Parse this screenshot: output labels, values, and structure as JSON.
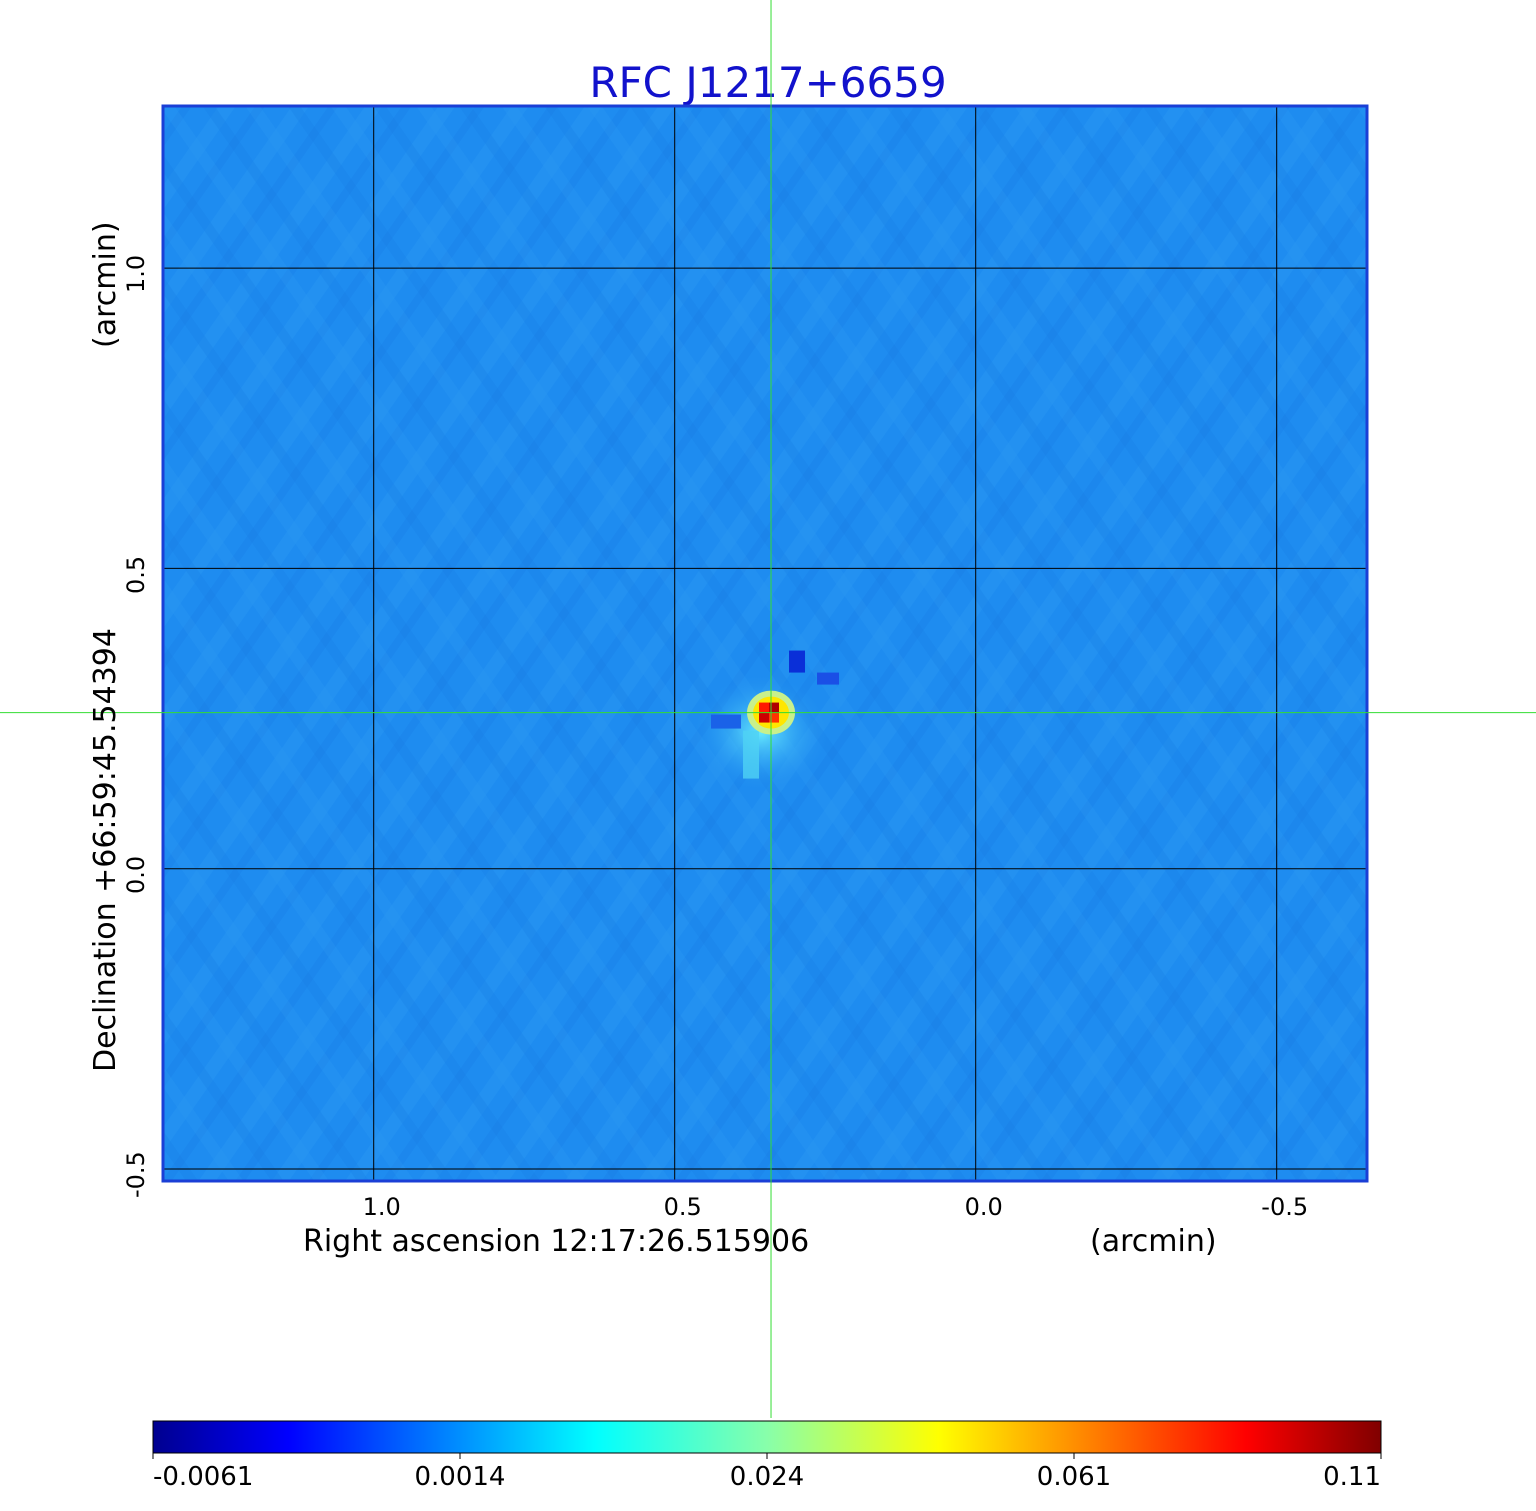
{
  "chart_data": {
    "type": "heatmap",
    "title": "RFC J1217+6659",
    "xlabel": "Right ascension  12:17:26.515906",
    "xunit": "(arcmin)",
    "ylabel": "Declination  +66:59:45.54394",
    "yunit": "(arcmin)",
    "x_range": [
      1.35,
      -0.65
    ],
    "y_range": [
      -0.52,
      1.27
    ],
    "x_ticks": [
      1.0,
      0.5,
      0.0,
      -0.5
    ],
    "x_tick_labels": [
      "1.0",
      "0.5",
      "0.0",
      "-0.5"
    ],
    "y_ticks": [
      1.0,
      0.5,
      0.0,
      -0.5
    ],
    "y_tick_labels": [
      "1.0",
      "0.5",
      "0.0",
      "-0.5"
    ],
    "grid": true,
    "crosshair": {
      "x": 0.34,
      "y": 0.26
    },
    "source_peak": {
      "x": 0.34,
      "y": 0.26,
      "value": 0.11
    },
    "background_value": 0.0,
    "colorbar": {
      "tick_labels": [
        "-0.0061",
        "0.0014",
        "0.024",
        "0.061",
        "0.11"
      ],
      "colormap": "jet",
      "range": [
        -0.0061,
        0.11
      ]
    },
    "colors": {
      "title": "#1212cc",
      "frame": "#1a3fd6",
      "background": "#1e8cf0",
      "grid": "#000000",
      "crosshair": "#33dd33"
    }
  }
}
